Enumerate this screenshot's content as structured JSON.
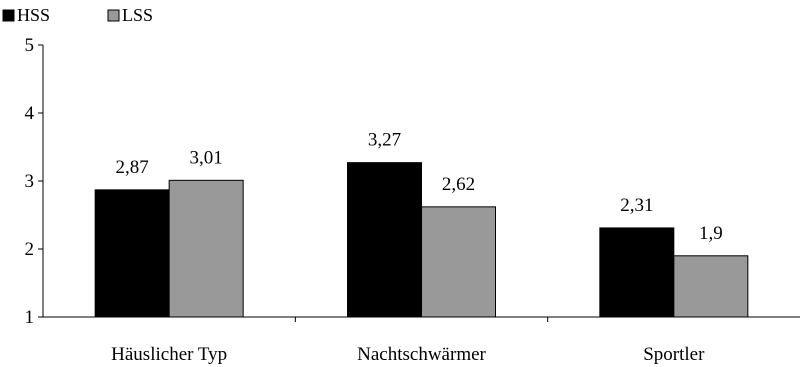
{
  "chart_data": {
    "type": "bar",
    "categories": [
      "Häuslicher Typ",
      "Nachtschwärmer",
      "Sportler"
    ],
    "series": [
      {
        "name": "HSS",
        "values": [
          2.87,
          3.27,
          2.31
        ],
        "labels": [
          "2,87",
          "3,27",
          "2,31"
        ],
        "color": "#000000"
      },
      {
        "name": "LSS",
        "values": [
          3.01,
          2.62,
          1.9
        ],
        "labels": [
          "3,01",
          "2,62",
          "1,9"
        ],
        "color": "#999999"
      }
    ],
    "ylim": [
      1,
      5
    ],
    "yticks": [
      1,
      2,
      3,
      4,
      5
    ],
    "ytick_labels": [
      "1",
      "2",
      "3",
      "4",
      "5"
    ],
    "legend_position": "top-left",
    "grid": false
  }
}
